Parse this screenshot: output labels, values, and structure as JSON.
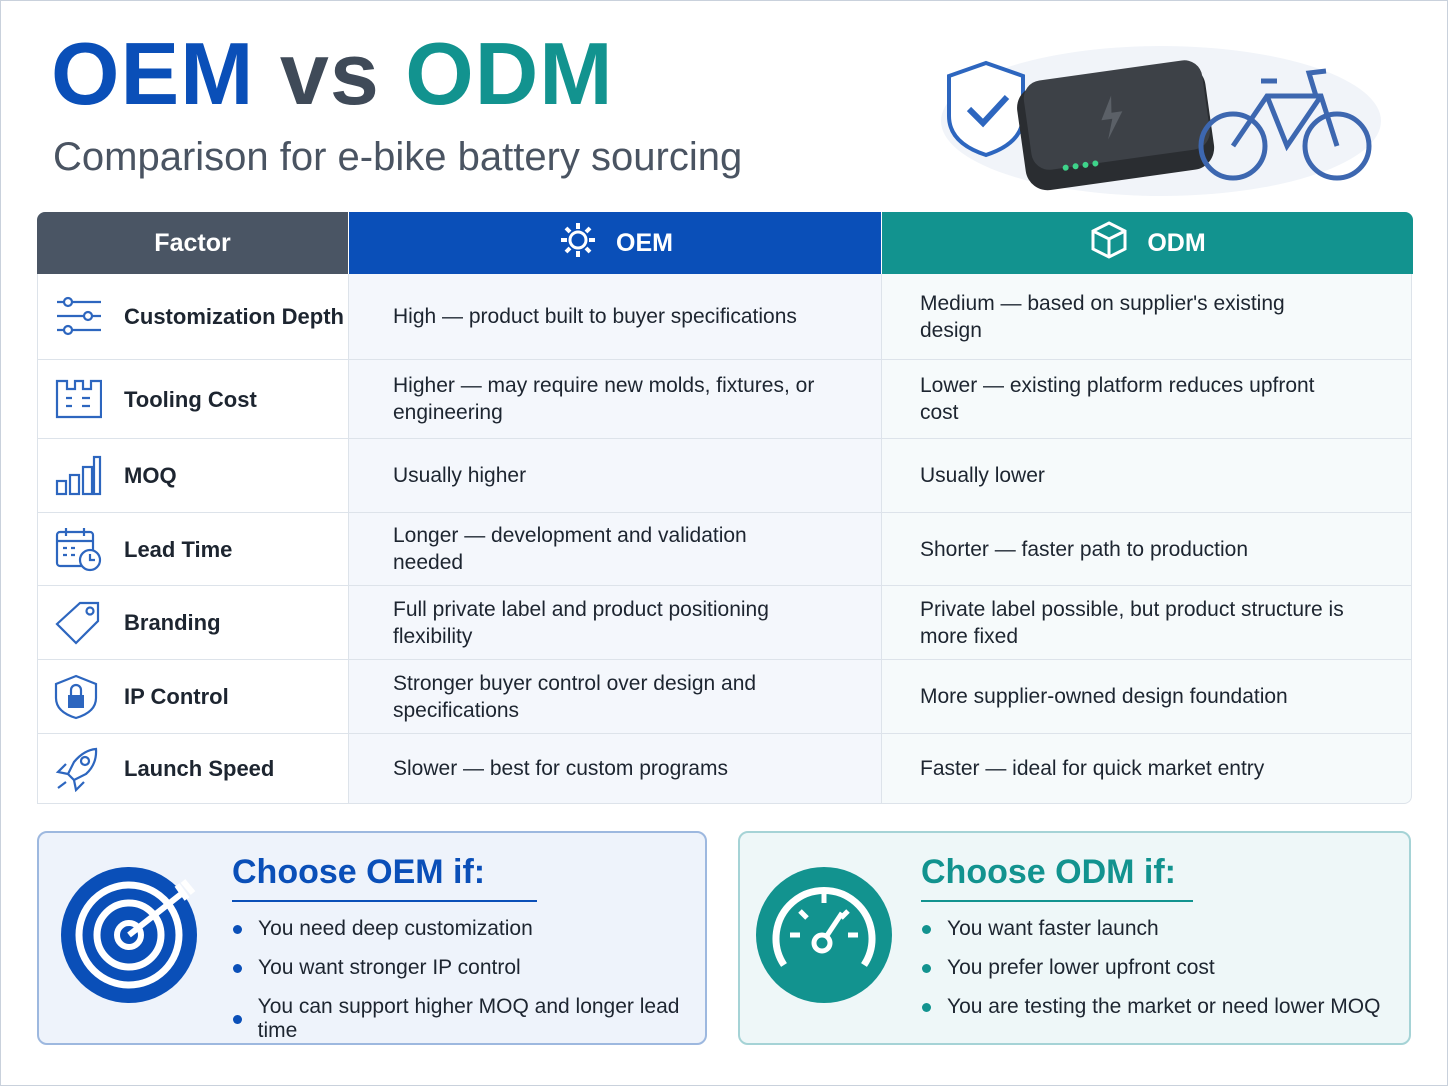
{
  "header": {
    "title_parts": [
      "OEM",
      "vs",
      "ODM"
    ],
    "subtitle": "Comparison for e-bike battery sourcing"
  },
  "table": {
    "columns": [
      "Factor",
      "OEM",
      "ODM"
    ],
    "rows": [
      [
        "Customization Depth",
        "High — product built to buyer specifications",
        "Medium — based on supplier's existing design"
      ],
      [
        "Tooling Cost",
        "Higher — may require new molds, fixtures, or engineering",
        "Lower — existing platform reduces upfront cost"
      ],
      [
        "MOQ",
        "Usually higher",
        "Usually lower"
      ],
      [
        "Lead Time",
        "Longer — development and validation needed",
        "Shorter — faster path to production"
      ],
      [
        "Branding",
        "Full private label and product positioning flexibility",
        "Private label possible, but product structure is more fixed"
      ],
      [
        "IP Control",
        "Stronger buyer control over design and specifications",
        "More supplier-owned design foundation"
      ],
      [
        "Launch Speed",
        "Slower — best for custom programs",
        "Faster — ideal for quick market entry"
      ]
    ]
  },
  "choose_oem": {
    "title": "Choose OEM if:",
    "bullets": [
      "You need deep customization",
      "You want stronger IP control",
      "You can support higher MOQ and longer lead time"
    ]
  },
  "choose_odm": {
    "title": "Choose ODM if:",
    "bullets": [
      "You want faster launch",
      "You prefer lower upfront cost",
      "You are testing the market or need lower MOQ"
    ]
  }
}
